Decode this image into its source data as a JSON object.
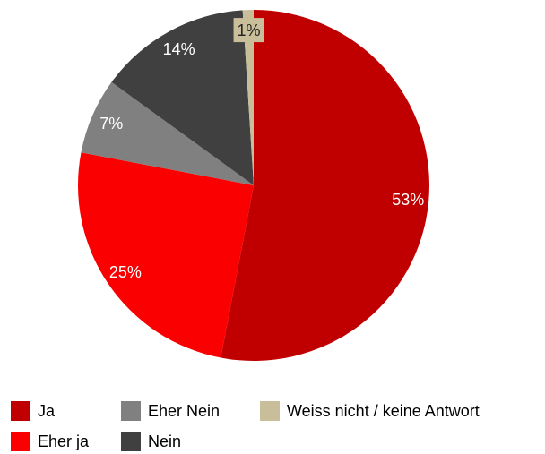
{
  "chart_data": {
    "type": "pie",
    "categories": [
      "Ja",
      "Eher ja",
      "Eher Nein",
      "Nein",
      "Weiss nicht / keine Antwort"
    ],
    "values": [
      53,
      25,
      7,
      14,
      1
    ],
    "value_labels": [
      "53%",
      "25%",
      "7%",
      "14%",
      "1%"
    ],
    "colors": [
      "#c00000",
      "#fa0000",
      "#808080",
      "#404040",
      "#c8be99"
    ]
  }
}
